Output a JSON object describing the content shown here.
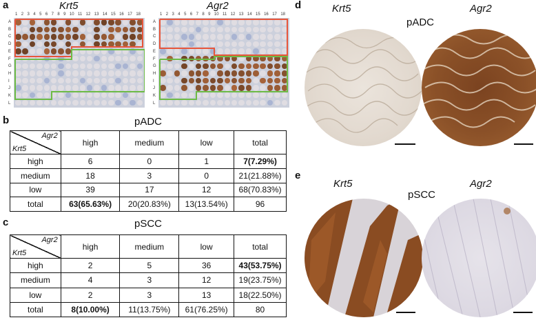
{
  "panels": {
    "a": "a",
    "b": "b",
    "c": "c",
    "d": "d",
    "e": "e"
  },
  "genes": {
    "krt5": "Krt5",
    "agr2": "Agr2"
  },
  "plate": {
    "col_labels": [
      "1",
      "2",
      "3",
      "4",
      "5",
      "6",
      "7",
      "8",
      "9",
      "10",
      "11",
      "12",
      "13",
      "14",
      "15",
      "16",
      "17",
      "18"
    ],
    "row_labels": [
      "A",
      "B",
      "C",
      "D",
      "E",
      "F",
      "G",
      "H",
      "I",
      "J",
      "K",
      "L"
    ],
    "colors": {
      "outline_red": "#e8553a",
      "outline_green": "#6dbb45",
      "stain_brown": "#8a4a1c",
      "background_blue": "#c5cad8"
    }
  },
  "table_b": {
    "title": "pADC",
    "corner_col": "Agr2",
    "corner_row": "Krt5",
    "headers": [
      "high",
      "medium",
      "low",
      "total"
    ],
    "rows": [
      {
        "label": "high",
        "cells": [
          "6",
          "0",
          "1",
          "7(7.29%)"
        ]
      },
      {
        "label": "medium",
        "cells": [
          "18",
          "3",
          "0",
          "21(21.88%)"
        ]
      },
      {
        "label": "low",
        "cells": [
          "39",
          "17",
          "12",
          "68(70.83%)"
        ]
      },
      {
        "label": "total",
        "cells": [
          "63(65.63%)",
          "20(20.83%)",
          "13(13.54%)",
          "96"
        ]
      }
    ]
  },
  "table_c": {
    "title": "pSCC",
    "corner_col": "Agr2",
    "corner_row": "Krt5",
    "headers": [
      "high",
      "medium",
      "low",
      "total"
    ],
    "rows": [
      {
        "label": "high",
        "cells": [
          "2",
          "5",
          "36",
          "43(53.75%)"
        ]
      },
      {
        "label": "medium",
        "cells": [
          "4",
          "3",
          "12",
          "19(23.75%)"
        ]
      },
      {
        "label": "low",
        "cells": [
          "2",
          "3",
          "13",
          "18(22.50%)"
        ]
      },
      {
        "label": "total",
        "cells": [
          "8(10.00%)",
          "11(13.75%)",
          "61(76.25%)",
          "80"
        ]
      }
    ]
  },
  "panel_d": {
    "title": "pADC"
  },
  "panel_e": {
    "title": "pSCC"
  }
}
